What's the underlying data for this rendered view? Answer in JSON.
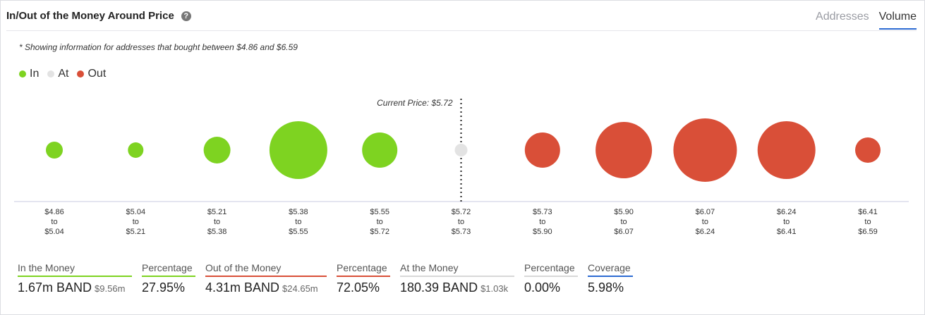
{
  "header": {
    "title": "In/Out of the Money Around Price",
    "help_icon": "question-circle-icon",
    "tabs": [
      {
        "label": "Addresses",
        "active": false
      },
      {
        "label": "Volume",
        "active": true
      }
    ]
  },
  "note": "* Showing information for addresses that bought between $4.86 and $6.59",
  "legend": [
    {
      "label": "In",
      "color": "#7ed321"
    },
    {
      "label": "At",
      "color": "#e3e3e3"
    },
    {
      "label": "Out",
      "color": "#d94f38"
    }
  ],
  "chart_data": {
    "type": "scatter",
    "current_price_label": "Current Price: $5.72",
    "current_price": 5.72,
    "buckets": [
      {
        "from": "$4.86",
        "to": "$5.04",
        "status": "in",
        "size": 12
      },
      {
        "from": "$5.04",
        "to": "$5.21",
        "status": "in",
        "size": 11
      },
      {
        "from": "$5.21",
        "to": "$5.38",
        "status": "in",
        "size": 19
      },
      {
        "from": "$5.38",
        "to": "$5.55",
        "status": "in",
        "size": 41
      },
      {
        "from": "$5.55",
        "to": "$5.72",
        "status": "in",
        "size": 25
      },
      {
        "from": "$5.72",
        "to": "$5.73",
        "status": "at",
        "size": 9
      },
      {
        "from": "$5.73",
        "to": "$5.90",
        "status": "out",
        "size": 25
      },
      {
        "from": "$5.90",
        "to": "$6.07",
        "status": "out",
        "size": 40
      },
      {
        "from": "$6.07",
        "to": "$6.24",
        "status": "out",
        "size": 45
      },
      {
        "from": "$6.24",
        "to": "$6.41",
        "status": "out",
        "size": 41
      },
      {
        "from": "$6.41",
        "to": "$6.59",
        "status": "out",
        "size": 18
      }
    ],
    "to_word": "to",
    "colors": {
      "in": "#7ed321",
      "at": "#e3e3e3",
      "out": "#d94f38"
    }
  },
  "stats": [
    {
      "label": "In the Money",
      "value": "1.67m BAND",
      "sub": "$9.56m",
      "accent": "#7ed321"
    },
    {
      "label": "Percentage",
      "value": "27.95%",
      "sub": "",
      "accent": "#7ed321"
    },
    {
      "label": "Out of the Money",
      "value": "4.31m BAND",
      "sub": "$24.65m",
      "accent": "#d94f38"
    },
    {
      "label": "Percentage",
      "value": "72.05%",
      "sub": "",
      "accent": "#d94f38"
    },
    {
      "label": "At the Money",
      "value": "180.39 BAND",
      "sub": "$1.03k",
      "accent": "#d8d8d8"
    },
    {
      "label": "Percentage",
      "value": "0.00%",
      "sub": "",
      "accent": "#d8d8d8"
    },
    {
      "label": "Coverage",
      "value": "5.98%",
      "sub": "",
      "accent": "#2d6bd2"
    }
  ]
}
